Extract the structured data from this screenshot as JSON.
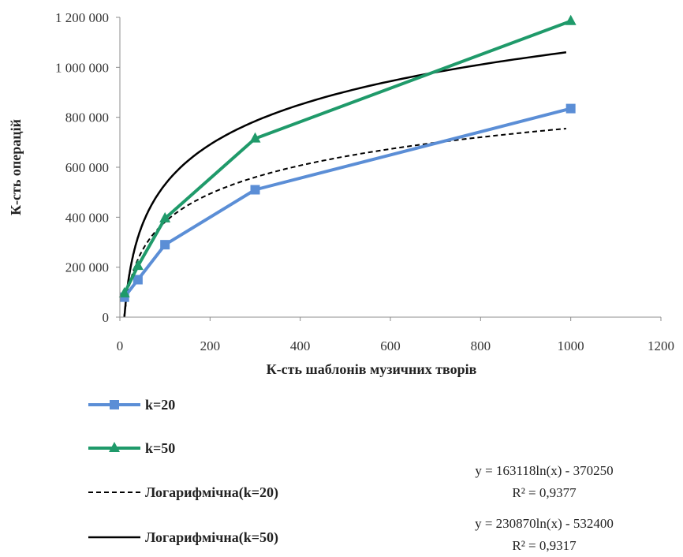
{
  "chart_data": {
    "type": "line",
    "xlabel": "К-сть шаблонів музичних творів",
    "ylabel": "К-сть операцій",
    "xlim": [
      0,
      1200
    ],
    "ylim": [
      0,
      1200000
    ],
    "x_ticks": [
      0,
      200,
      400,
      600,
      800,
      1000,
      1200
    ],
    "y_ticks": [
      0,
      200000,
      400000,
      600000,
      800000,
      1000000,
      1200000
    ],
    "x_tick_labels": [
      "0",
      "200",
      "400",
      "600",
      "800",
      "1000",
      "1200"
    ],
    "y_tick_labels": [
      "0",
      "200 000",
      "400 000",
      "600 000",
      "800 000",
      "1 000 000",
      "1 200 000"
    ],
    "grid": false,
    "legend_position": "bottom",
    "series": [
      {
        "name": "k=20",
        "color": "#5b8ed6",
        "marker": "square",
        "x": [
          10,
          40,
          100,
          300,
          1000
        ],
        "y": [
          80000,
          150000,
          290000,
          510000,
          835000
        ]
      },
      {
        "name": "k=50",
        "color": "#1f9a6a",
        "marker": "triangle",
        "x": [
          10,
          40,
          100,
          300,
          1000
        ],
        "y": [
          95000,
          205000,
          395000,
          715000,
          1185000
        ]
      }
    ],
    "trendlines": [
      {
        "name": "Логарифмічна(k=20)",
        "color": "#000000",
        "dash": true,
        "a": 163118,
        "b": -370250,
        "equation": "y = 163118ln(x) - 370250",
        "r2": "R² = 0,9377"
      },
      {
        "name": "Логарифмічна(k=50)",
        "color": "#000000",
        "dash": false,
        "a": 230870,
        "b": -532400,
        "equation": "y = 230870ln(x) - 532400",
        "r2": "R² = 0,9317"
      }
    ]
  }
}
